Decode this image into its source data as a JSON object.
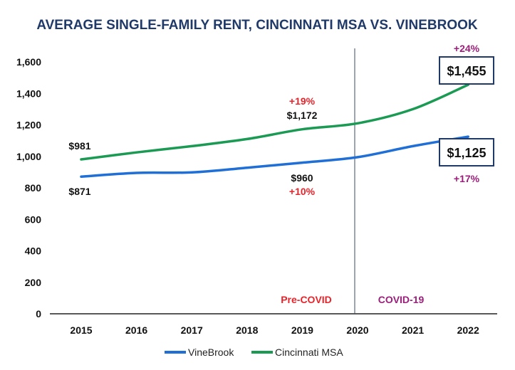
{
  "chart_data": {
    "type": "line",
    "title": "AVERAGE SINGLE-FAMILY RENT, CINCINNATI MSA VS. VINEBROOK",
    "xlabel": "",
    "ylabel": "",
    "categories": [
      "2015",
      "2016",
      "2017",
      "2018",
      "2019",
      "2020",
      "2021",
      "2022"
    ],
    "ylim": [
      0,
      1600
    ],
    "yticks": [
      "0",
      "200",
      "400",
      "600",
      "800",
      "1,000",
      "1,200",
      "1,400",
      "1,600"
    ],
    "series": [
      {
        "name": "VineBrook",
        "color": "#1f6fd6",
        "values": [
          871,
          895,
          898,
          928,
          960,
          995,
          1065,
          1125
        ]
      },
      {
        "name": "Cincinnati MSA",
        "color": "#1a9a52",
        "values": [
          981,
          1025,
          1065,
          1110,
          1172,
          1210,
          1300,
          1455
        ]
      }
    ],
    "legend_position": "bottom",
    "grid": false,
    "annotations": {
      "msa_start": "$981",
      "msa_mid": "$1,172",
      "msa_mid_pct": "+19%",
      "msa_end": "$1,455",
      "msa_end_pct": "+24%",
      "vb_start": "$871",
      "vb_mid": "$960",
      "vb_mid_pct": "+10%",
      "vb_end": "$1,125",
      "vb_end_pct": "+17%",
      "pre_covid": "Pre-COVID",
      "covid": "COVID-19"
    },
    "annotation_colors": {
      "pre_covid": "#e8232a",
      "covid": "#9b1f7a"
    }
  }
}
